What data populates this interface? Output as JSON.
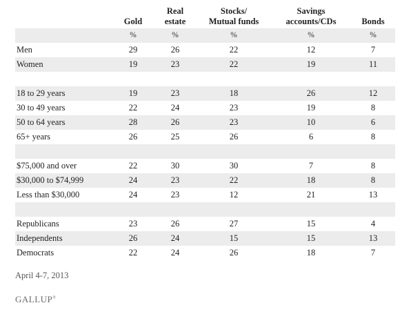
{
  "chart_data": {
    "type": "table",
    "columns": [
      "Gold",
      "Real estate",
      "Stocks/ Mutual funds",
      "Savings accounts/CDs",
      "Bonds"
    ],
    "header_lines": [
      [
        "Gold"
      ],
      [
        "Real",
        "estate"
      ],
      [
        "Stocks/",
        "Mutual funds"
      ],
      [
        "Savings",
        "accounts/CDs"
      ],
      [
        "Bonds"
      ]
    ],
    "unit_row": [
      "%",
      "%",
      "%",
      "%",
      "%"
    ],
    "groups": [
      {
        "rows": [
          {
            "label": "Men",
            "values": [
              29,
              26,
              22,
              12,
              7
            ]
          },
          {
            "label": "Women",
            "values": [
              19,
              23,
              22,
              19,
              11
            ]
          }
        ]
      },
      {
        "rows": [
          {
            "label": "18 to 29 years",
            "values": [
              19,
              23,
              18,
              26,
              12
            ]
          },
          {
            "label": "30 to 49 years",
            "values": [
              22,
              24,
              23,
              19,
              8
            ]
          },
          {
            "label": "50 to 64 years",
            "values": [
              28,
              26,
              23,
              10,
              6
            ]
          },
          {
            "label": "65+ years",
            "values": [
              26,
              25,
              26,
              6,
              8
            ]
          }
        ]
      },
      {
        "rows": [
          {
            "label": "$75,000 and over",
            "values": [
              22,
              30,
              30,
              7,
              8
            ]
          },
          {
            "label": "$30,000 to $74,999",
            "values": [
              24,
              23,
              22,
              18,
              8
            ]
          },
          {
            "label": "Less than $30,000",
            "values": [
              24,
              23,
              12,
              21,
              13
            ]
          }
        ]
      },
      {
        "rows": [
          {
            "label": "Republicans",
            "values": [
              23,
              26,
              27,
              15,
              4
            ]
          },
          {
            "label": "Independents",
            "values": [
              26,
              24,
              15,
              15,
              13
            ]
          },
          {
            "label": "Democrats",
            "values": [
              22,
              24,
              26,
              18,
              7
            ]
          }
        ]
      }
    ]
  },
  "footnote": "April 4-7, 2013",
  "logo": "GALLUP",
  "colors": {
    "shade": "#ececec",
    "text": "#222222",
    "logo": "#6b6b6b"
  }
}
